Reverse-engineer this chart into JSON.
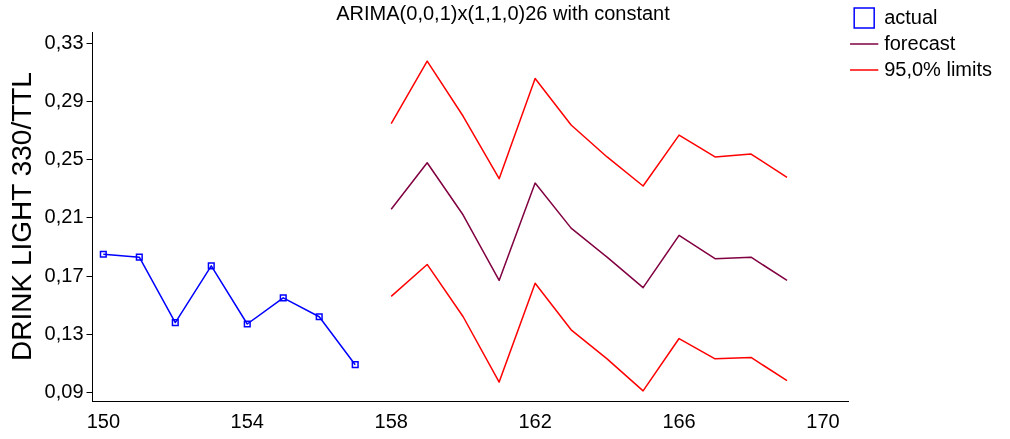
{
  "chart_data": {
    "type": "line",
    "title": "ARIMA(0,0,1)x(1,1,0)26 with constant",
    "ylabel": "DRINK LIGHT 330/TTL",
    "xlim": [
      149.7,
      170.7
    ],
    "xticks": [
      150,
      154,
      158,
      162,
      166,
      170
    ],
    "ylim": [
      0.084,
      0.338
    ],
    "yticks": [
      {
        "value": 0.09,
        "label": "0,09"
      },
      {
        "value": 0.13,
        "label": "0,13"
      },
      {
        "value": 0.17,
        "label": "0,17"
      },
      {
        "value": 0.21,
        "label": "0,21"
      },
      {
        "value": 0.25,
        "label": "0,25"
      },
      {
        "value": 0.29,
        "label": "0,29"
      },
      {
        "value": 0.33,
        "label": "0,33"
      }
    ],
    "grid": false,
    "legend": "right",
    "line_style": "solid",
    "series": [
      {
        "name": "actual",
        "color": "#0000ff",
        "marker": "square",
        "x": [
          150,
          151,
          152,
          153,
          154,
          155,
          156,
          157
        ],
        "values": [
          0.185,
          0.183,
          0.138,
          0.177,
          0.137,
          0.155,
          0.142,
          0.109
        ]
      },
      {
        "name": "forecast",
        "color": "#800040",
        "marker": "none",
        "x": [
          158,
          159,
          160,
          161,
          162,
          163,
          164,
          165,
          166,
          167,
          168,
          169
        ],
        "values": [
          0.216,
          0.248,
          0.212,
          0.167,
          0.234,
          0.203,
          0.183,
          0.162,
          0.198,
          0.182,
          0.183,
          0.167
        ]
      },
      {
        "name": "95,0% limits",
        "color": "#ff0000",
        "marker": "none",
        "x": [
          158,
          159,
          160,
          161,
          162,
          163,
          164,
          165,
          166,
          167,
          168,
          169
        ],
        "values": [
          0.275,
          0.318,
          0.28,
          0.237,
          0.306,
          0.274,
          0.252,
          0.232,
          0.267,
          0.252,
          0.254,
          0.238
        ]
      },
      {
        "color": "#ff0000",
        "marker": "none",
        "x": [
          158,
          159,
          160,
          161,
          162,
          163,
          164,
          165,
          166,
          167,
          168,
          169
        ],
        "values": [
          0.156,
          0.178,
          0.142,
          0.097,
          0.165,
          0.133,
          0.113,
          0.091,
          0.127,
          0.113,
          0.114,
          0.098
        ]
      }
    ]
  }
}
